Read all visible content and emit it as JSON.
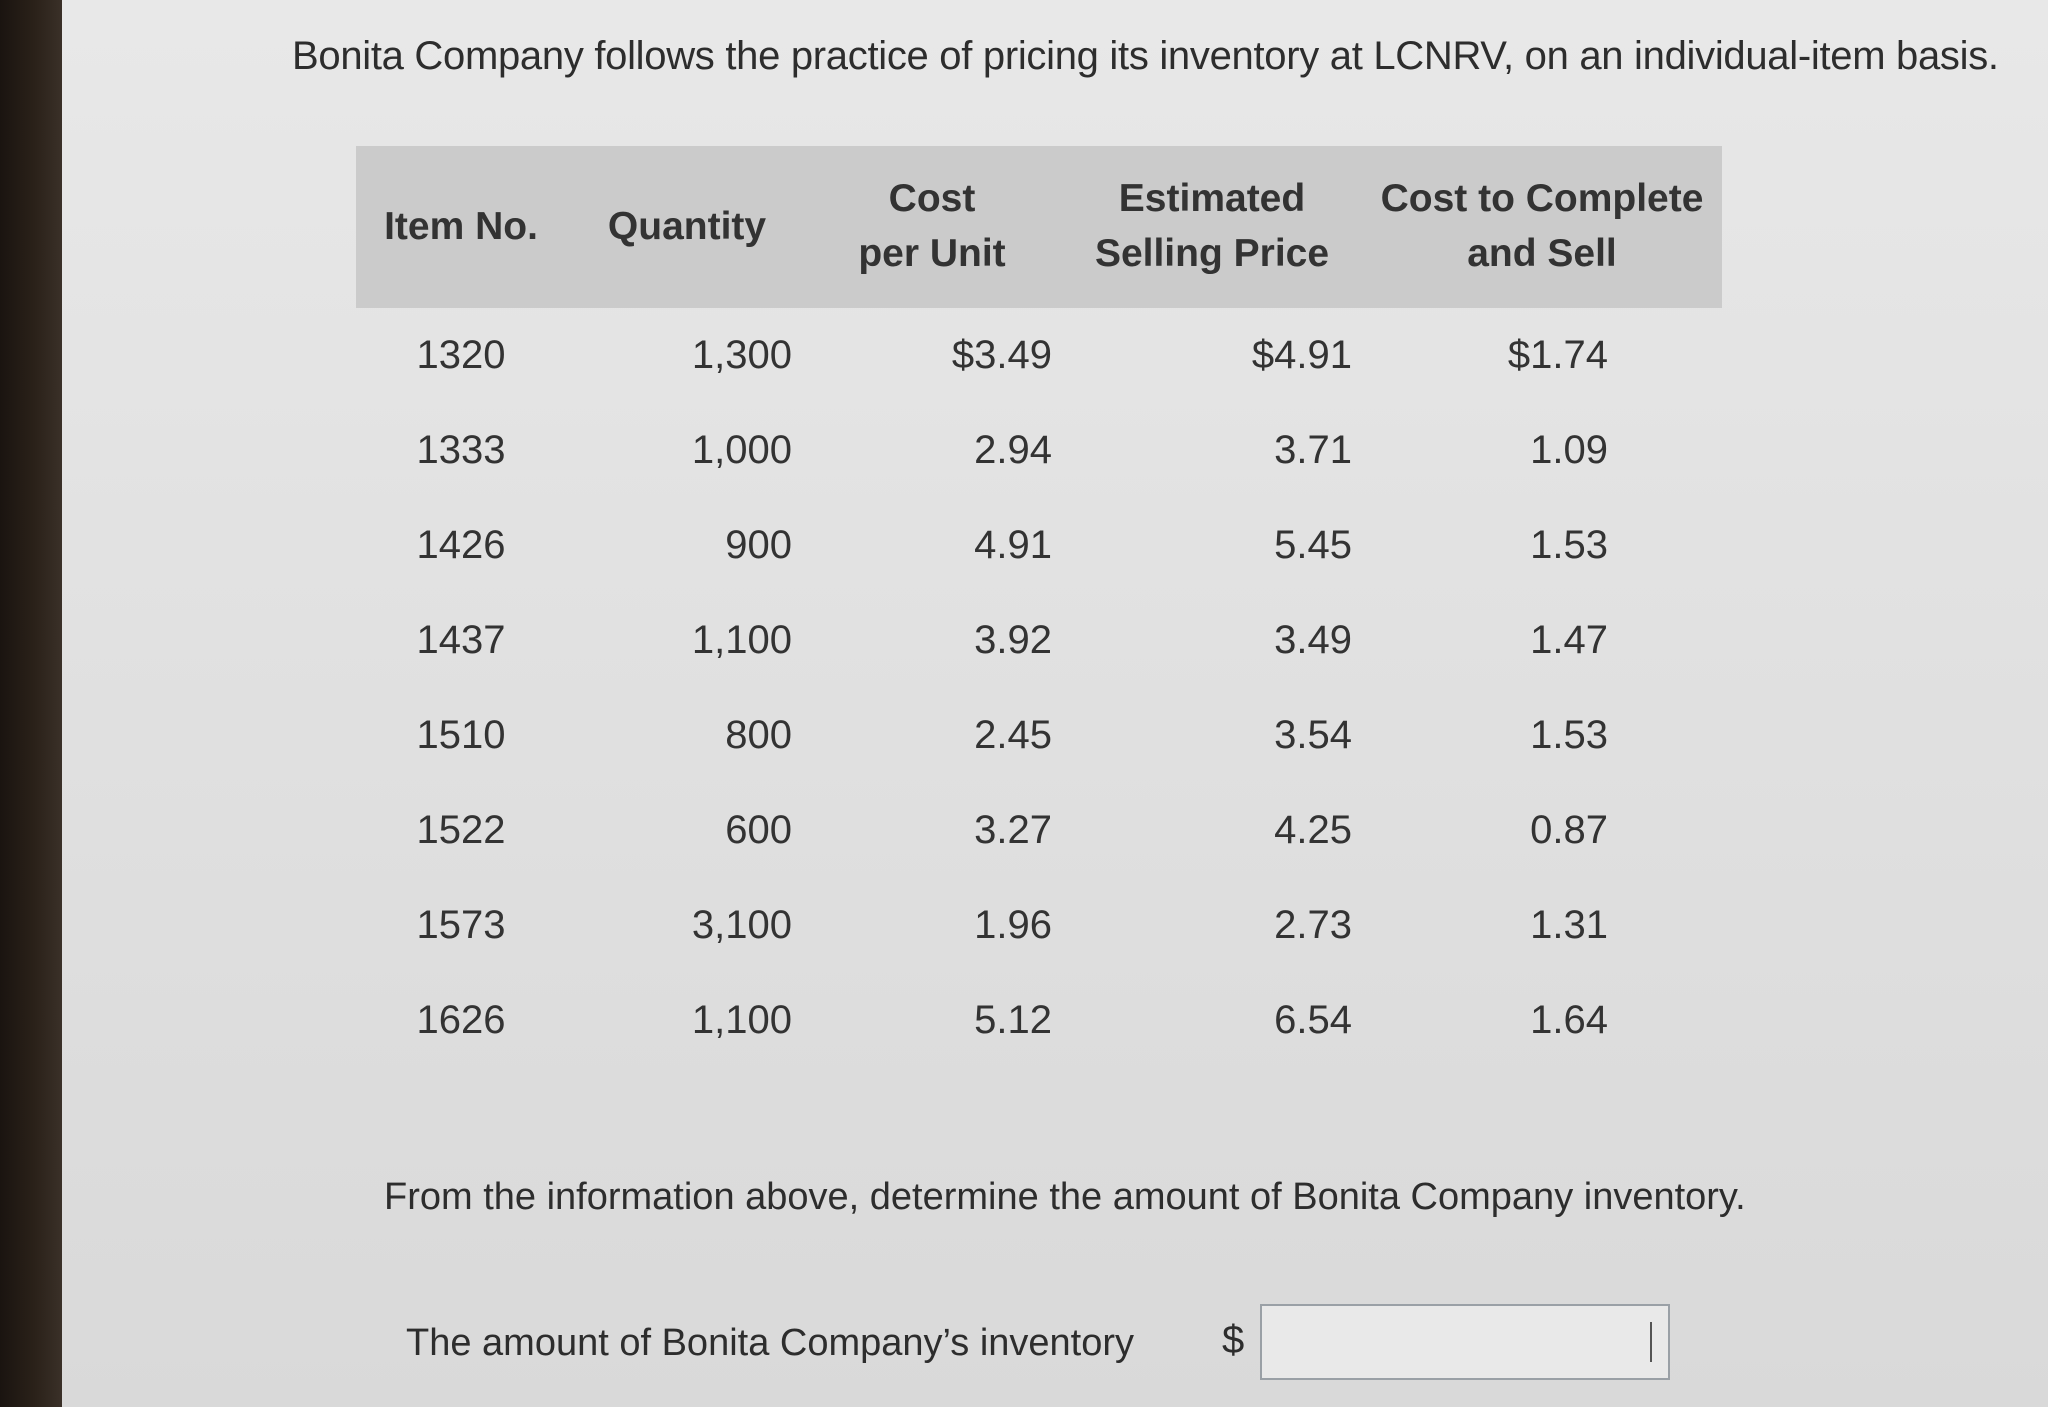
{
  "intro": "Bonita Company follows the practice of pricing its inventory at LCNRV, on an individual-item basis.",
  "table": {
    "headers": {
      "item": [
        "Item No."
      ],
      "qty": [
        "Quantity"
      ],
      "cost": [
        "Cost",
        "per Unit"
      ],
      "sell": [
        "Estimated",
        "Selling Price"
      ],
      "ctc": [
        "Cost to Complete",
        "and Sell"
      ]
    },
    "rows": [
      {
        "item": "1320",
        "qty": "1,300",
        "cost": "$3.49",
        "sell": "$4.91",
        "ctc": "$1.74"
      },
      {
        "item": "1333",
        "qty": "1,000",
        "cost": "2.94",
        "sell": "3.71",
        "ctc": "1.09"
      },
      {
        "item": "1426",
        "qty": "900",
        "cost": "4.91",
        "sell": "5.45",
        "ctc": "1.53"
      },
      {
        "item": "1437",
        "qty": "1,100",
        "cost": "3.92",
        "sell": "3.49",
        "ctc": "1.47"
      },
      {
        "item": "1510",
        "qty": "800",
        "cost": "2.45",
        "sell": "3.54",
        "ctc": "1.53"
      },
      {
        "item": "1522",
        "qty": "600",
        "cost": "3.27",
        "sell": "4.25",
        "ctc": "0.87"
      },
      {
        "item": "1573",
        "qty": "3,100",
        "cost": "1.96",
        "sell": "2.73",
        "ctc": "1.31"
      },
      {
        "item": "1626",
        "qty": "1,100",
        "cost": "5.12",
        "sell": "6.54",
        "ctc": "1.64"
      }
    ]
  },
  "question": "From the information above, determine the amount of Bonita Company inventory.",
  "answer": {
    "label": "The amount of Bonita Company’s inventory",
    "currency": "$",
    "value": ""
  }
}
